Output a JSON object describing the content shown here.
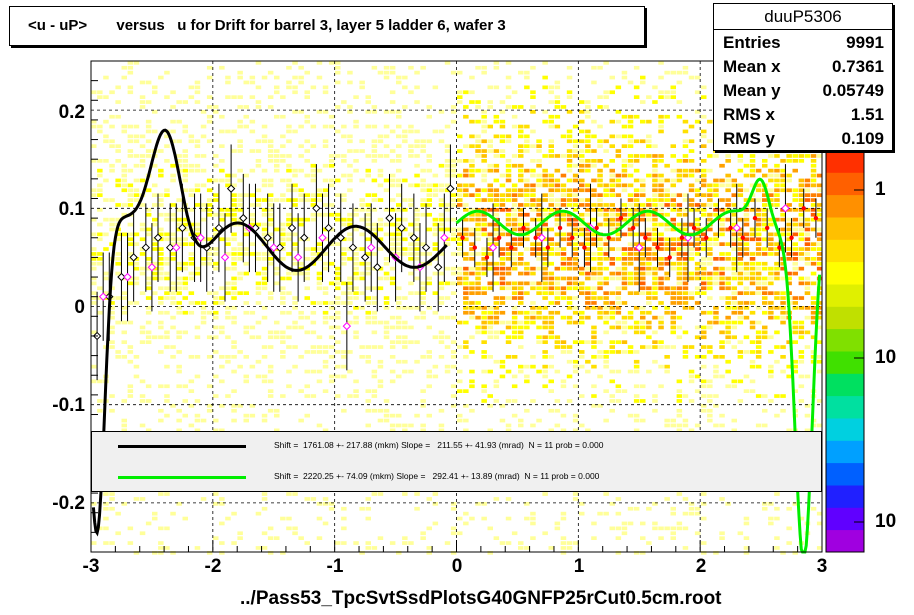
{
  "chart_data": {
    "type": "scatter",
    "title": "<u - uP>       versus   u for Drift for barrel 3, layer 5 ladder 6, wafer 3",
    "xlabel": "../Pass53_TpcSvtSsdPlotsG40GNFP25rCut0.5cm.root",
    "ylabel": "",
    "xlim": [
      -3,
      3
    ],
    "ylim": [
      -0.25,
      0.25
    ],
    "x_ticks": [
      "-3",
      "-2",
      "-1",
      "0",
      "1",
      "2",
      "3"
    ],
    "y_ticks": [
      "0.2",
      "0.1",
      "0",
      "-0.1",
      "-0.2"
    ],
    "z_ticks": [
      "1",
      "10",
      "10"
    ],
    "grid": true,
    "series": [
      {
        "name": "black profile",
        "color": "#000000",
        "x": [
          -2.95,
          -2.85,
          -2.75,
          -2.65,
          -2.55,
          -2.45,
          -2.35,
          -2.25,
          -2.15,
          -2.05,
          -1.95,
          -1.85,
          -1.75,
          -1.65,
          -1.55,
          -1.45,
          -1.35,
          -1.25,
          -1.15,
          -1.05,
          -0.95,
          -0.85,
          -0.75,
          -0.65,
          -0.55,
          -0.45,
          -0.35,
          -0.25,
          -0.15,
          -0.05
        ],
        "y": [
          -0.03,
          0.01,
          0.03,
          0.05,
          0.06,
          0.07,
          0.06,
          0.08,
          0.07,
          0.06,
          0.08,
          0.12,
          0.09,
          0.08,
          0.07,
          0.06,
          0.08,
          0.07,
          0.1,
          0.08,
          0.07,
          0.06,
          0.05,
          0.04,
          0.09,
          0.08,
          0.07,
          0.06,
          0.04,
          0.12
        ]
      },
      {
        "name": "red profile",
        "color": "#ff0000",
        "x": [
          0.05,
          0.15,
          0.25,
          0.35,
          0.45,
          0.55,
          0.65,
          0.75,
          0.85,
          0.95,
          1.05,
          1.15,
          1.25,
          1.35,
          1.45,
          1.55,
          1.65,
          1.75,
          1.85,
          1.95,
          2.05,
          2.15,
          2.25,
          2.35,
          2.45,
          2.55,
          2.65,
          2.75,
          2.85,
          2.95
        ],
        "y": [
          0.07,
          0.06,
          0.05,
          0.07,
          0.06,
          0.08,
          0.07,
          0.06,
          0.08,
          0.07,
          0.06,
          0.08,
          0.07,
          0.09,
          0.08,
          0.07,
          0.06,
          0.05,
          0.07,
          0.08,
          0.07,
          0.09,
          0.08,
          0.07,
          0.09,
          0.08,
          0.06,
          0.07,
          0.1,
          0.09
        ]
      },
      {
        "name": "magenta points",
        "color": "#ff00ff",
        "x": [
          -2.9,
          -2.7,
          -2.5,
          -2.3,
          -2.1,
          -1.9,
          -1.7,
          -1.5,
          -1.3,
          -1.1,
          -0.9,
          -0.7,
          -0.5,
          -0.3,
          -0.1,
          0.3,
          0.7,
          1.1,
          1.5,
          1.9,
          2.3,
          2.7
        ],
        "y": [
          0.01,
          0.03,
          0.04,
          0.06,
          0.07,
          0.05,
          0.08,
          0.06,
          0.05,
          0.07,
          -0.02,
          0.06,
          0.05,
          0.04,
          0.07,
          0.06,
          0.07,
          0.08,
          0.06,
          0.07,
          0.08,
          0.1
        ]
      }
    ],
    "fits": [
      {
        "name": "black fit",
        "color": "#000000",
        "label": "Shift =  1761.08 +- 217.88 (mkm) Slope =   211.55 +- 41.93 (mrad)  N = 11 prob = 0.000"
      },
      {
        "name": "green fit",
        "color": "#00ee00",
        "label": "Shift =  2220.25 +- 74.09 (mkm) Slope =   292.41 +- 13.89 (mrad)  N = 11 prob = 0.000"
      }
    ]
  },
  "stats": {
    "title": "duuP5306",
    "rows": [
      {
        "label": "Entries",
        "value": "9991"
      },
      {
        "label": "Mean x",
        "value": "0.7361"
      },
      {
        "label": "Mean y",
        "value": "0.05749"
      },
      {
        "label": "RMS x",
        "value": "1.51"
      },
      {
        "label": "RMS y",
        "value": "0.109"
      }
    ]
  },
  "colors": {
    "palette": [
      "#ffff99",
      "#ffff00",
      "#ffe000",
      "#ffc000",
      "#ffa000",
      "#ff8000",
      "#ff6000"
    ],
    "zscale": [
      "#a000e0",
      "#6000ff",
      "#2020ff",
      "#0060ff",
      "#00a0ff",
      "#00d0e0",
      "#00e0a0",
      "#00e060",
      "#40e000",
      "#80e000",
      "#c0e000",
      "#e0f000",
      "#ffff00",
      "#ffe000",
      "#ffc000",
      "#ff9000",
      "#ff6000",
      "#ff3000"
    ]
  }
}
